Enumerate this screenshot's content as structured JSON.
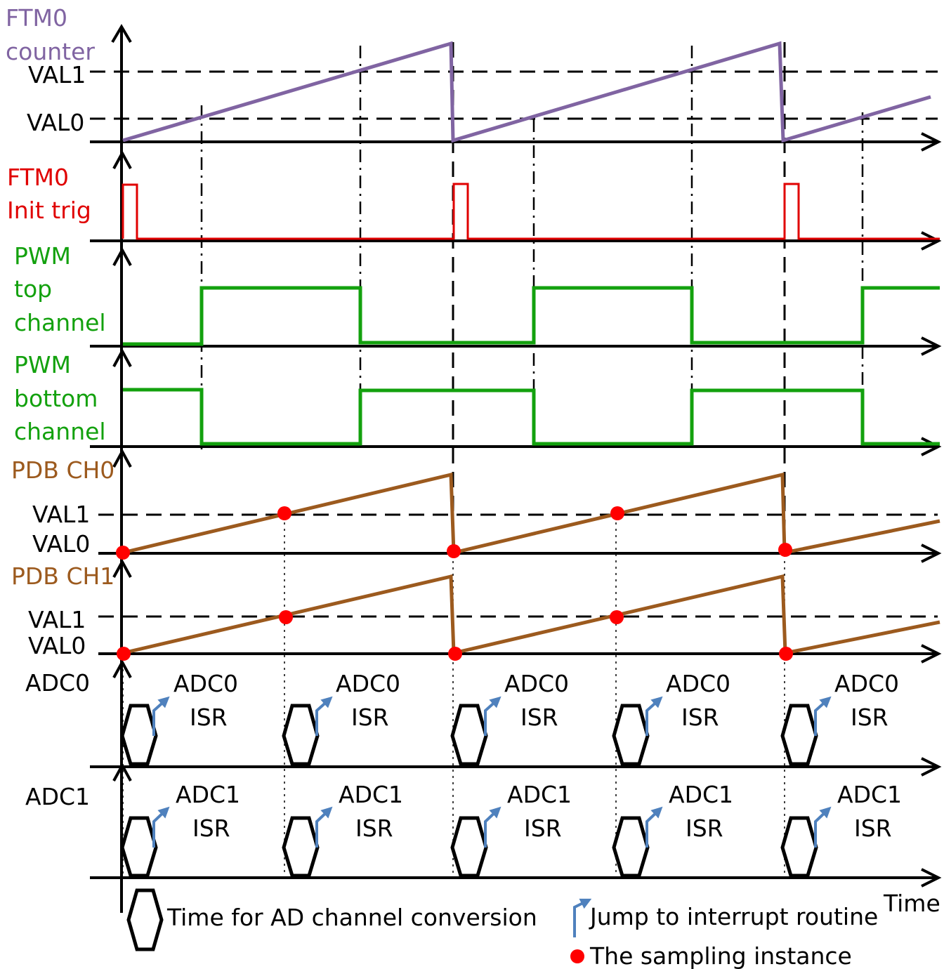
{
  "labels": {
    "ftm0_counter_line1": "FTM0",
    "ftm0_counter_line2": "counter",
    "val1_a": "VAL1",
    "val0_a": "VAL0",
    "ftm0_init_line1": "FTM0",
    "ftm0_init_line2": "Init trig",
    "pwm_top_line1": "PWM",
    "pwm_top_line2": "top",
    "pwm_top_line3": "channel",
    "pwm_bottom_line1": "PWM",
    "pwm_bottom_line2": "bottom",
    "pwm_bottom_line3": "channel",
    "pdb_ch0": "PDB CH0",
    "val1_b": "VAL1",
    "val0_b": "VAL0",
    "pdb_ch1": "PDB CH1",
    "val1_c": "VAL1",
    "val0_c": "VAL0",
    "adc0": "ADC0",
    "adc1": "ADC1",
    "time": "Time"
  },
  "isr_labels": {
    "adc0_top": "ADC0",
    "adc1_top": "ADC1",
    "isr": "ISR"
  },
  "legend": {
    "conversion": "Time for AD channel conversion",
    "jump": "Jump to interrupt routine",
    "sampling": "The sampling instance"
  },
  "colors": {
    "ftm_counter": "#8064a2",
    "init_trig": "#e00000",
    "pwm": "#13a10e",
    "pdb": "#9c5a1e",
    "isr_arrow": "#4f81bd",
    "sample_dot": "#ff0000",
    "axis": "#000000"
  }
}
